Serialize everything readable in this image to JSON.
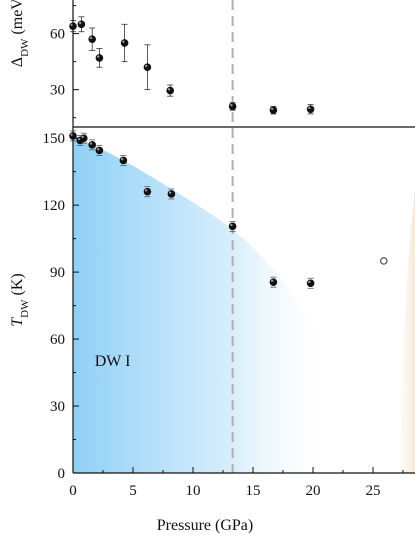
{
  "colors": {
    "phase_fill": "#8fd0f6",
    "dashed_line": "#b0b0b0",
    "marker": "#111111",
    "open_marker_stroke": "#333333"
  },
  "phase_label": "DW I",
  "chart_data": [
    {
      "type": "scatter",
      "panel": "top",
      "ylabel": "ΔDW (meV)",
      "ylabel_main": "Δ",
      "ylabel_sub": "DW",
      "ylabel_rest": " (meV)",
      "ytick_labels": [
        "30",
        "60"
      ],
      "yticks": [
        30,
        60
      ],
      "ylim": [
        10,
        78
      ],
      "xlim": [
        0,
        28.5
      ],
      "series": [
        {
          "points": [
            {
              "x": 0.0,
              "y": 64,
              "err": 3
            },
            {
              "x": 0.7,
              "y": 65,
              "err": 4
            },
            {
              "x": 1.6,
              "y": 57,
              "err": 6
            },
            {
              "x": 2.2,
              "y": 47,
              "err": 5
            },
            {
              "x": 4.3,
              "y": 55,
              "err": 10
            },
            {
              "x": 6.2,
              "y": 42,
              "err": 12
            },
            {
              "x": 8.1,
              "y": 29.5,
              "err": 3
            },
            {
              "x": 13.3,
              "y": 21,
              "err": 2
            },
            {
              "x": 16.7,
              "y": 19,
              "err": 2
            },
            {
              "x": 19.8,
              "y": 19.5,
              "err": 2.5
            }
          ]
        }
      ]
    },
    {
      "type": "scatter",
      "panel": "bottom",
      "xlabel": "Pressure (GPa)",
      "ylabel": "TDW (K)",
      "ylabel_main": "T",
      "ylabel_sub": "DW",
      "ylabel_rest": " (K)",
      "xlim": [
        0,
        28.5
      ],
      "ylim": [
        0,
        155
      ],
      "xticks": [
        0,
        5,
        10,
        15,
        20,
        25
      ],
      "xtick_labels": [
        "0",
        "5",
        "10",
        "15",
        "20",
        "25"
      ],
      "yticks": [
        0,
        30,
        60,
        90,
        120,
        150
      ],
      "ytick_labels": [
        "0",
        "30",
        "60",
        "90",
        "120",
        "150"
      ],
      "dashed_vline_x": 13.3,
      "series": [
        {
          "marker": "filled",
          "points": [
            {
              "x": 0.0,
              "y": 151
            },
            {
              "x": 0.6,
              "y": 149
            },
            {
              "x": 0.9,
              "y": 150
            },
            {
              "x": 1.6,
              "y": 147
            },
            {
              "x": 2.2,
              "y": 144.5
            },
            {
              "x": 4.2,
              "y": 140
            },
            {
              "x": 6.2,
              "y": 126
            },
            {
              "x": 8.2,
              "y": 125
            },
            {
              "x": 13.3,
              "y": 110.5
            },
            {
              "x": 16.7,
              "y": 85.5
            },
            {
              "x": 19.8,
              "y": 85
            }
          ]
        },
        {
          "marker": "open",
          "points": [
            {
              "x": 25.9,
              "y": 95
            }
          ]
        }
      ],
      "phase_boundary": [
        {
          "x": 0,
          "y": 151
        },
        {
          "x": 4,
          "y": 141
        },
        {
          "x": 8,
          "y": 128
        },
        {
          "x": 13,
          "y": 111
        },
        {
          "x": 16,
          "y": 96
        },
        {
          "x": 19,
          "y": 76
        },
        {
          "x": 21.5,
          "y": 50
        },
        {
          "x": 23,
          "y": 25
        },
        {
          "x": 23.7,
          "y": 0
        }
      ]
    }
  ]
}
